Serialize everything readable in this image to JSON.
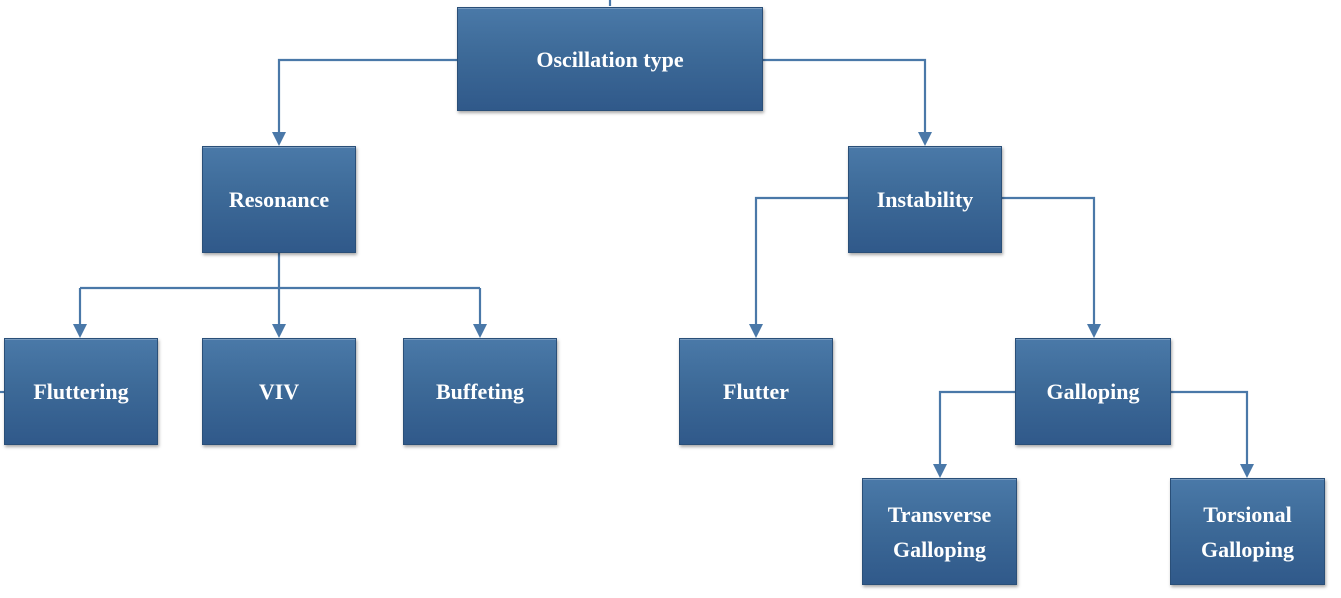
{
  "nodes": {
    "root": "Oscillation type",
    "resonance": "Resonance",
    "instability": "Instability",
    "fluttering": "Fluttering",
    "viv": "VIV",
    "buffeting": "Buffeting",
    "flutter": "Flutter",
    "galloping": "Galloping",
    "transverse_line1": "Transverse",
    "transverse_line2": "Galloping",
    "torsional_line1": "Torsional",
    "torsional_line2": "Galloping"
  },
  "colors": {
    "box_fill": "#3d6a98",
    "box_border": "#2a4f78",
    "connector": "#4a78a8",
    "text": "#ffffff"
  }
}
